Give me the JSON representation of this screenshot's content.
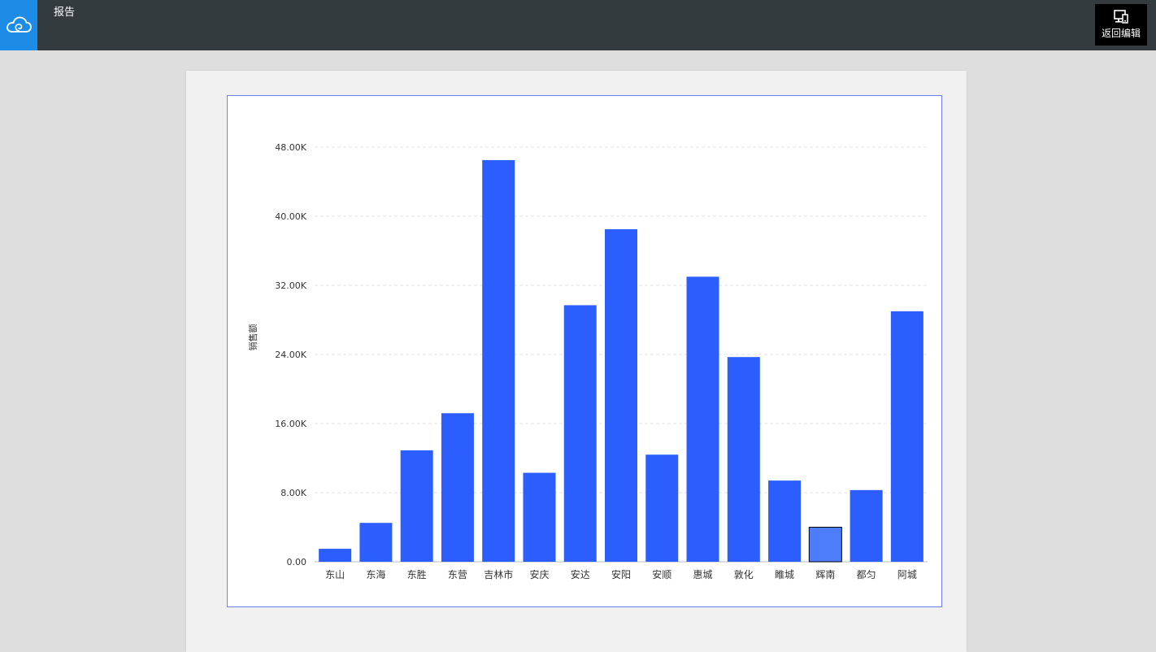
{
  "header": {
    "title": "报告",
    "back_edit_label": "返回编辑",
    "logo_icon": "cloud-icon",
    "back_edit_icon": "device-edit-icon",
    "logo_color": "#1c8ce6",
    "bar_color": "#343b3f"
  },
  "chart_data": {
    "type": "bar",
    "title": "",
    "xlabel": "",
    "ylabel": "销售额",
    "categories": [
      "东山",
      "东海",
      "东胜",
      "东营",
      "吉林市",
      "安庆",
      "安达",
      "安阳",
      "安顺",
      "惠城",
      "敦化",
      "睢城",
      "辉南",
      "都匀",
      "阿城"
    ],
    "values": [
      1500,
      4500,
      12900,
      17200,
      46500,
      10300,
      29700,
      38500,
      12400,
      33000,
      23700,
      9400,
      4000,
      8300,
      29000
    ],
    "highlighted": "辉南",
    "ylim": [
      0,
      48000
    ],
    "yticks": [
      0,
      8000,
      16000,
      24000,
      32000,
      40000,
      48000
    ],
    "ytick_labels": [
      "0.00",
      "8.00K",
      "16.00K",
      "24.00K",
      "32.00K",
      "40.00K",
      "48.00K"
    ],
    "grid": true,
    "bar_color": "#2b5efc",
    "highlight_color": "#4e7dfc"
  }
}
